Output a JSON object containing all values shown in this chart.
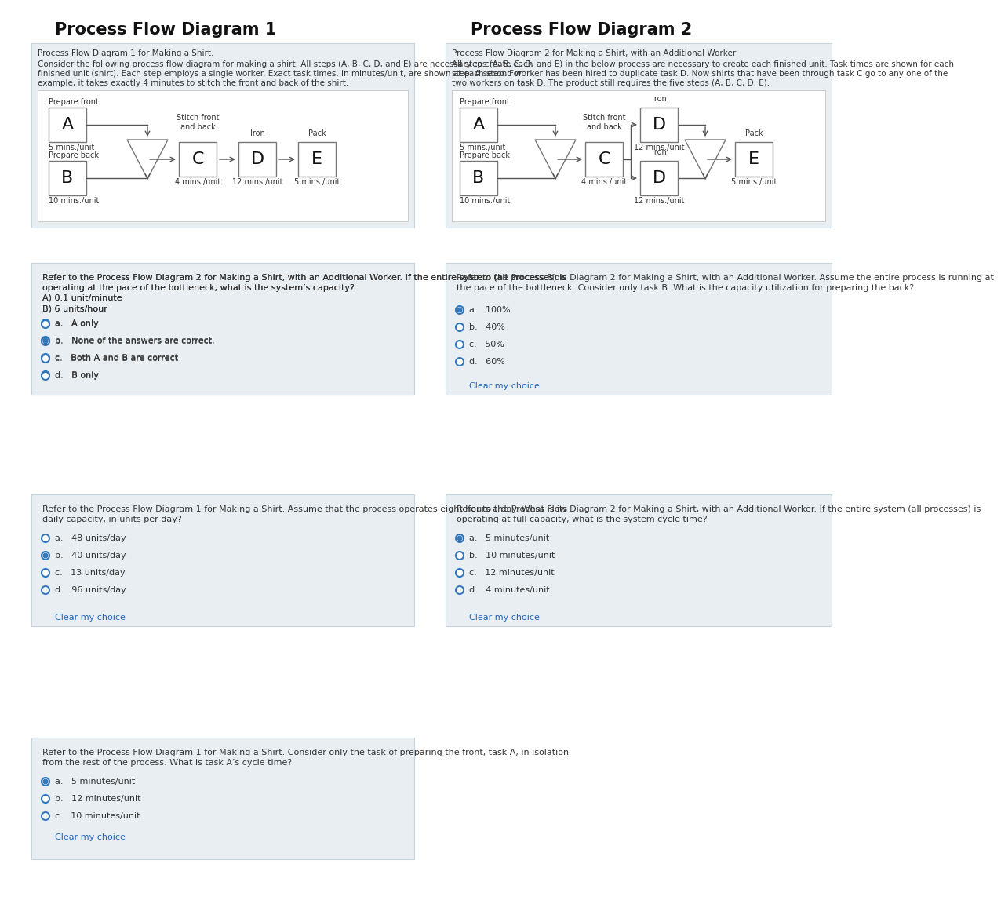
{
  "bg_color": "#ffffff",
  "panel_bg": "#e8eef2",
  "title1": "Process Flow Diagram 1",
  "title2": "Process Flow Diagram 2",
  "diagram1_subtitle": "Process Flow Diagram 1 for Making a Shirt.",
  "diagram1_desc_l1": "Consider the following process flow diagram for making a shirt. All steps (A, B, C, D, and E) are necessary to create each",
  "diagram1_desc_l2": "finished unit (shirt). Each step employs a single worker. Exact task times, in minutes/unit, are shown at each step. For",
  "diagram1_desc_l3": "example, it takes exactly 4 minutes to stitch the front and back of the shirt.",
  "diagram2_subtitle": "Process Flow Diagram 2 for Making a Shirt, with an Additional Worker",
  "diagram2_desc_l1": "All steps (A, B, C, D, and E) in the below process are necessary to create each finished unit. Task times are shown for each",
  "diagram2_desc_l2": "step. A second worker has been hired to duplicate task D. Now shirts that have been through task C go to any one of the",
  "diagram2_desc_l3": "two workers on task D. The product still requires the five steps (A, B, C, D, E).",
  "q1_text_l1": "Refer to the Process Flow Diagram 2 for Making a Shirt, with an Additional Worker. If the entire system (all processes) is",
  "q1_text_l2": "operating at the pace of the bottleneck, what is the system’s capacity?",
  "q1_text_l3": "A) 0.1 unit/minute",
  "q1_text_l4": "B) 6 units/hour",
  "q1_opts": [
    "a.   A only",
    "b.   None of the answers are correct.",
    "c.   Both A and B are correct",
    "d.   B only"
  ],
  "q1_sel": 1,
  "q2_text_l1": "Refer to the Process Flow Diagram 2 for Making a Shirt, with an Additional Worker. Assume the entire process is running at",
  "q2_text_l2": "the pace of the bottleneck. Consider only task B. What is the capacity utilization for preparing the back?",
  "q2_opts": [
    "a.   100%",
    "b.   40%",
    "c.   50%",
    "d.   60%"
  ],
  "q2_sel": 0,
  "q3_text_l1": "Refer to the Process Flow Diagram 1 for Making a Shirt. Assume that the process operates eight hours a day. What is its",
  "q3_text_l2": "daily capacity, in units per day?",
  "q3_opts": [
    "a.   48 units/day",
    "b.   40 units/day",
    "c.   13 units/day",
    "d.   96 units/day"
  ],
  "q3_sel": 1,
  "q4_text_l1": "Refer to the Process Flow Diagram 2 for Making a Shirt, with an Additional Worker. If the entire system (all processes) is",
  "q4_text_l2": "operating at full capacity, what is the system cycle time?",
  "q4_opts": [
    "a.   5 minutes/unit",
    "b.   10 minutes/unit",
    "c.   12 minutes/unit",
    "d.   4 minutes/unit"
  ],
  "q4_sel": 0,
  "q5_text_l1": "Refer to the Process Flow Diagram 1 for Making a Shirt. Consider only the task of preparing the front, task A, in isolation",
  "q5_text_l2": "from the rest of the process. What is task A’s cycle time?",
  "q5_opts": [
    "a.   5 minutes/unit",
    "b.   12 minutes/unit",
    "c.   10 minutes/unit"
  ],
  "q5_sel": 0,
  "clear": "Clear my choice",
  "arrow_color": "#555555",
  "box_ec": "#777777",
  "text_color": "#333333"
}
